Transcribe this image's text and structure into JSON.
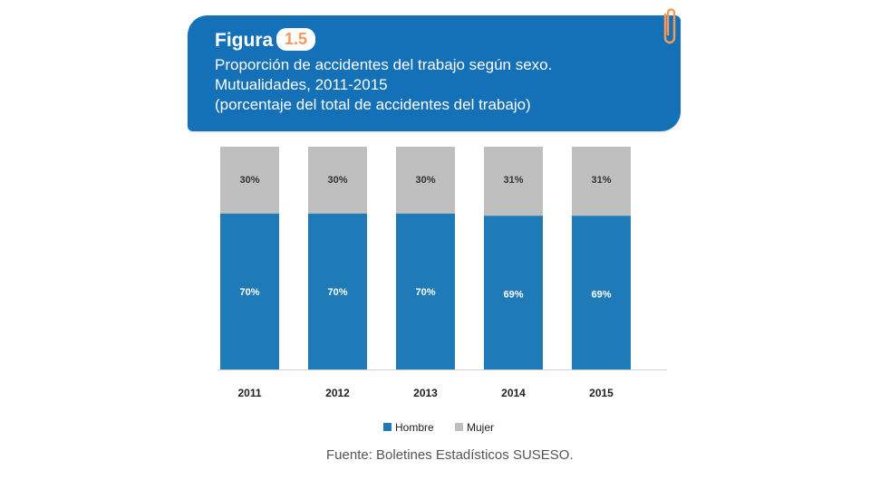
{
  "header": {
    "figura_label": "Figura",
    "figura_number": "1.5",
    "title_lines": [
      "Proporción de accidentes del trabajo según sexo.",
      "Mutualidades, 2011-2015",
      "(porcentaje del total de accidentes del trabajo)"
    ]
  },
  "chart_data": {
    "type": "bar",
    "stacked": true,
    "normalized": true,
    "categories": [
      "2011",
      "2012",
      "2013",
      "2014",
      "2015"
    ],
    "series": [
      {
        "name": "Hombre",
        "values": [
          70,
          70,
          70,
          69,
          69
        ],
        "labels": [
          "70%",
          "70%",
          "70%",
          "69%",
          "69%"
        ],
        "color": "#1f7bb8"
      },
      {
        "name": "Mujer",
        "values": [
          30,
          30,
          30,
          31,
          31
        ],
        "labels": [
          "30%",
          "30%",
          "30%",
          "31%",
          "31%"
        ],
        "color": "#bfbfbf"
      }
    ],
    "ylim": [
      0,
      100
    ],
    "grid": false,
    "legend": "bottom"
  },
  "footer": {
    "source": "Fuente: Boletines Estadísticos SUSESO."
  }
}
